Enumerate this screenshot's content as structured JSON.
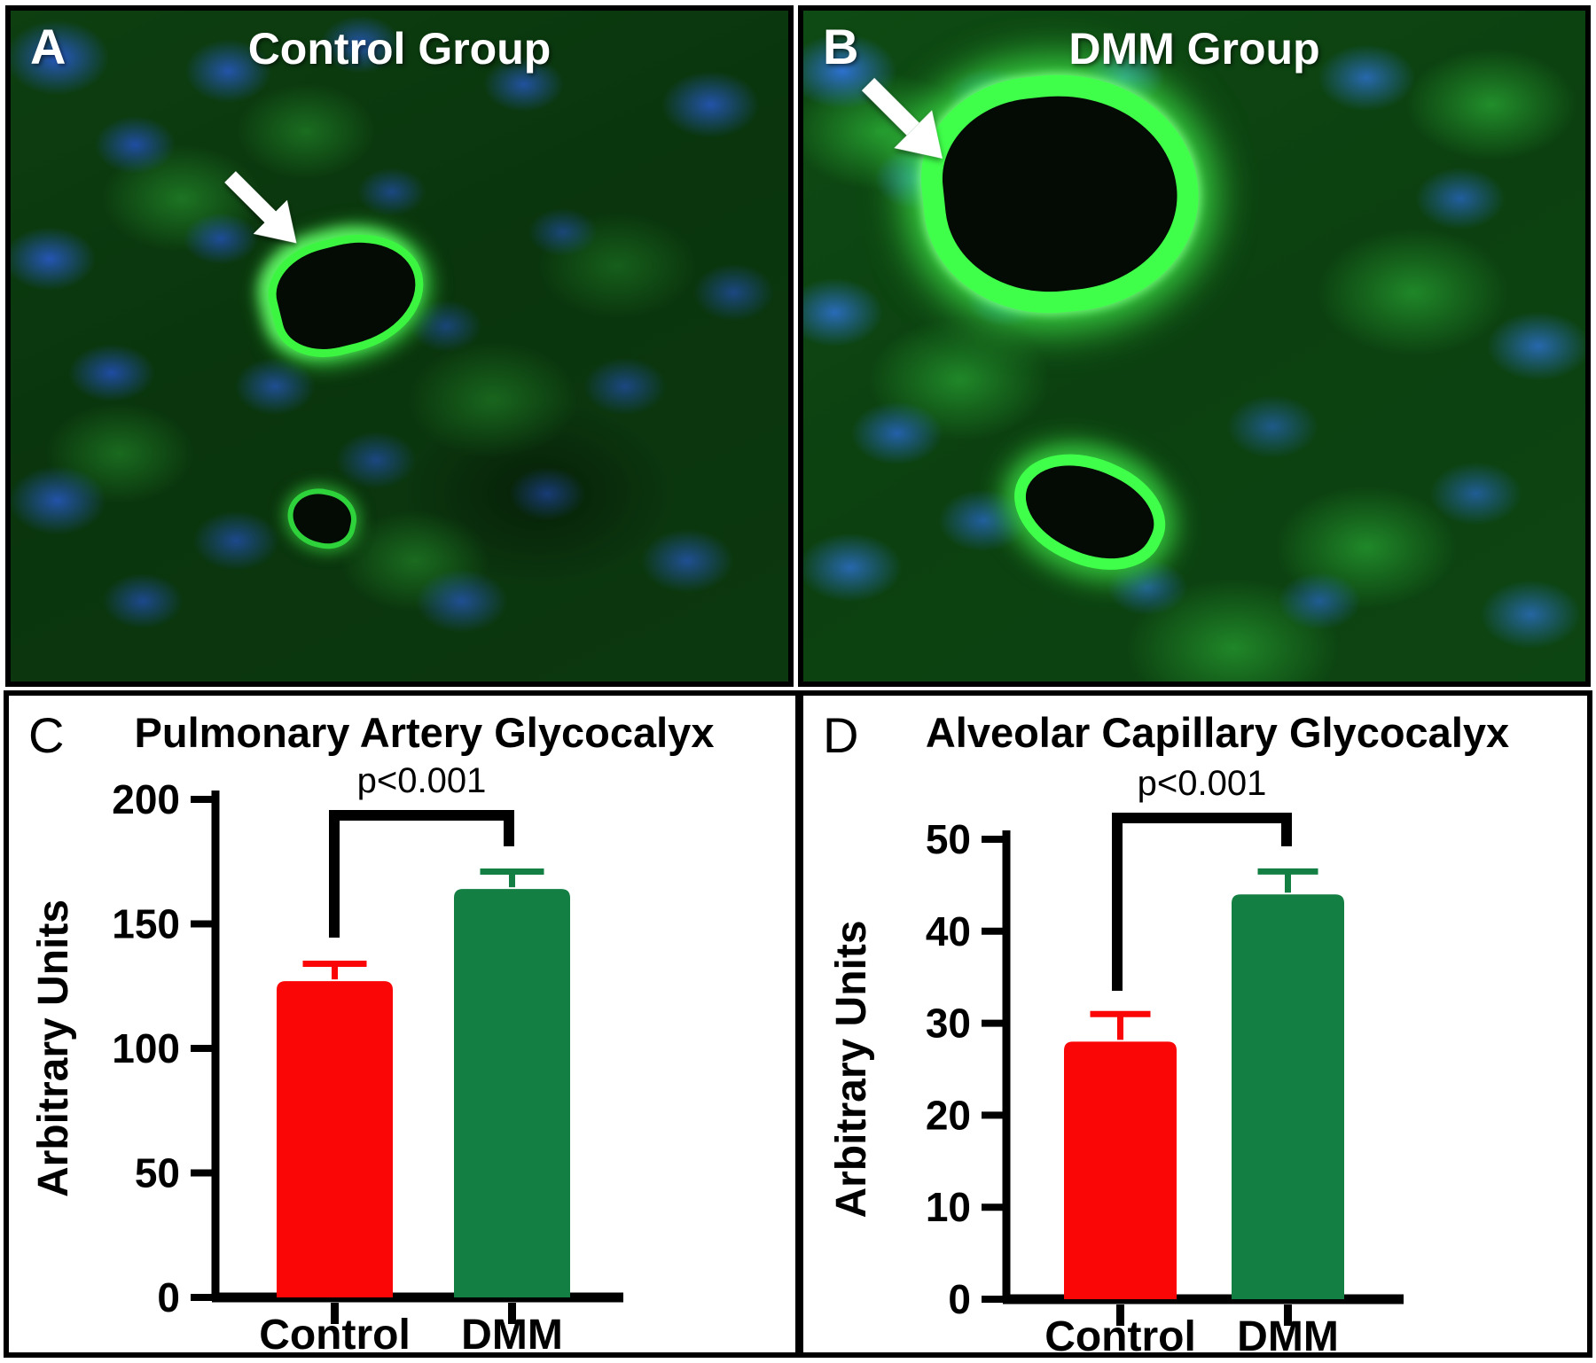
{
  "figure": {
    "panels": {
      "a": {
        "letter": "A",
        "title": "Control Group"
      },
      "b": {
        "letter": "B",
        "title": "DMM Group"
      }
    }
  },
  "colors": {
    "control_bar": "#fa0606",
    "dmm_bar": "#137f43",
    "glycocalyx_green": "#3fff4a",
    "nuclei_blue": "#2f5fe6",
    "axis_black": "#000000"
  },
  "chart_data": [
    {
      "type": "bar",
      "panel_letter": "C",
      "title": "Pulmonary Artery Glycocalyx",
      "ylabel": "Arbitrary Units",
      "xlabel": "",
      "categories": [
        "Control",
        "DMM"
      ],
      "values": [
        127,
        164
      ],
      "error_plus": [
        7,
        7
      ],
      "bar_colors": [
        "#fa0606",
        "#137f43"
      ],
      "ylim": [
        0,
        200
      ],
      "yticks": [
        0,
        50,
        100,
        150,
        200
      ],
      "grid": false,
      "legend": false,
      "significance": {
        "label": "p<0.001",
        "between": [
          "Control",
          "DMM"
        ]
      }
    },
    {
      "type": "bar",
      "panel_letter": "D",
      "title": "Alveolar Capillary Glycocalyx",
      "ylabel": "Arbitrary Units",
      "xlabel": "",
      "categories": [
        "Control",
        "DMM"
      ],
      "values": [
        28,
        44
      ],
      "error_plus": [
        3,
        2.5
      ],
      "bar_colors": [
        "#fa0606",
        "#137f43"
      ],
      "ylim": [
        0,
        50
      ],
      "yticks": [
        0,
        10,
        20,
        30,
        40,
        50
      ],
      "grid": false,
      "legend": false,
      "significance": {
        "label": "p<0.001",
        "between": [
          "Control",
          "DMM"
        ]
      }
    }
  ]
}
